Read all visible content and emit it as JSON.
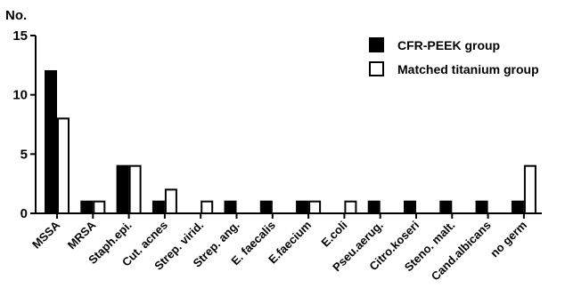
{
  "chart_data": {
    "type": "bar",
    "ylabel": "No.",
    "xlabel": "",
    "title": "",
    "ylim": [
      0,
      15
    ],
    "yticks": [
      "0",
      "5",
      "10",
      "15"
    ],
    "categories": [
      "MSSA",
      "MRSA",
      "Staph.epi.",
      "Cut. acnes",
      "Strep. virid.",
      "Strep. ang.",
      "E. faecalis",
      "E.faecium",
      "E.coli",
      "Pseu.aerug.",
      "Citro.koseri",
      "Steno. malt.",
      "Cand.albicans",
      "no germ"
    ],
    "series": [
      {
        "name": "CFR-PEEK group",
        "color": "#000000",
        "values": [
          12,
          1,
          4,
          1,
          0,
          1,
          1,
          1,
          0,
          1,
          1,
          1,
          1,
          1
        ]
      },
      {
        "name": "Matched titanium group",
        "color": "#ffffff",
        "values": [
          8,
          1,
          4,
          2,
          1,
          0,
          0,
          1,
          1,
          0,
          0,
          0,
          0,
          4
        ]
      }
    ],
    "legend_position": "top-right",
    "grid": false
  }
}
